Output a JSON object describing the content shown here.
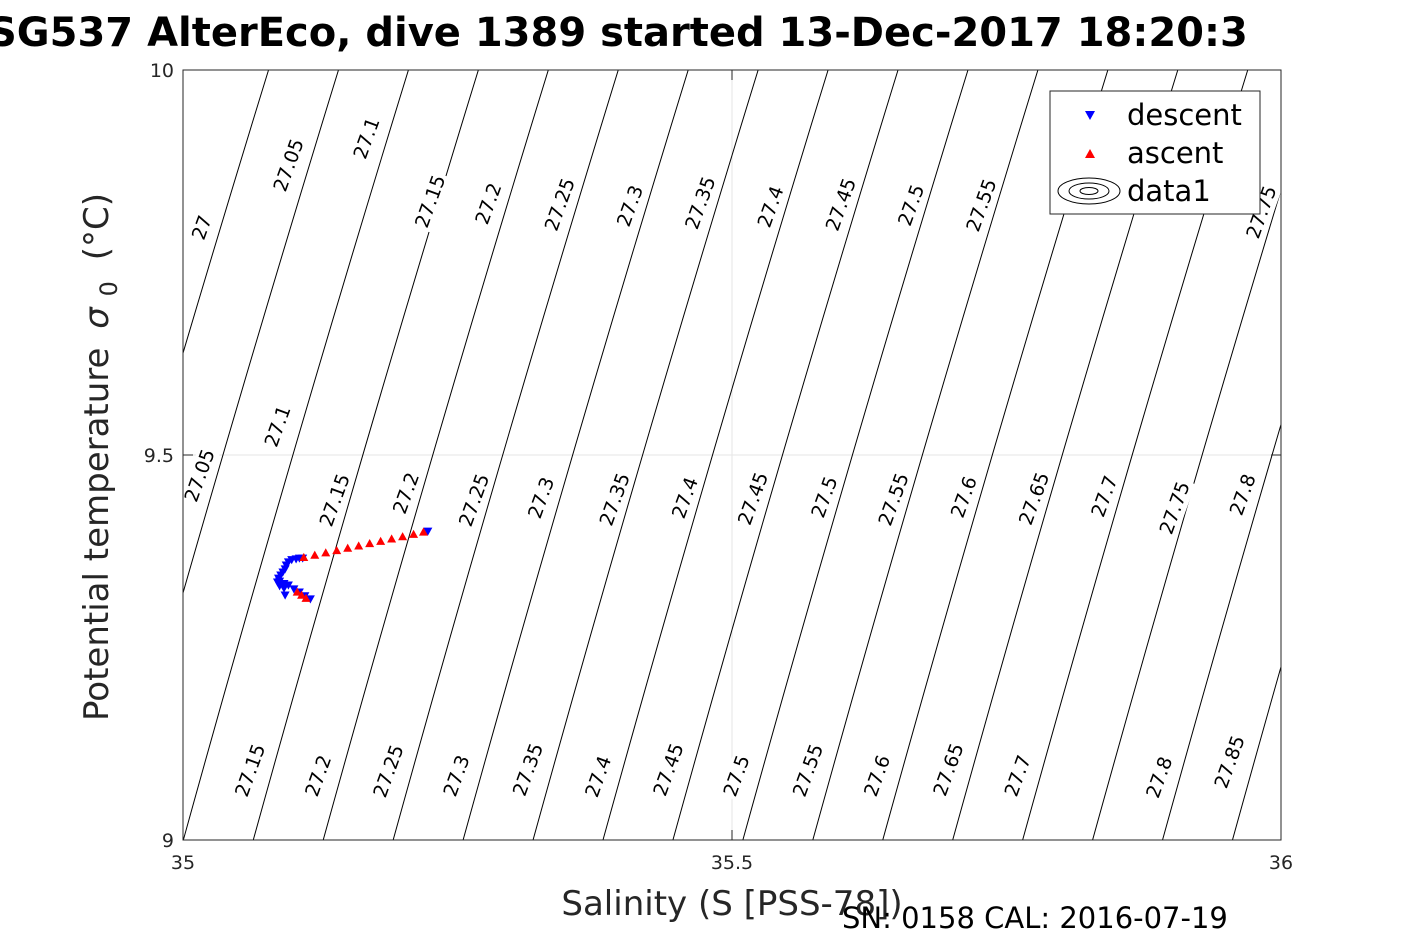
{
  "chart_data": {
    "type": "scatter",
    "title": "SG537 AlterEco, dive 1389 started 13-Dec-2017 18:20:3",
    "xlabel": "Salinity (S [PSS-78])",
    "ylabel": "Potential temperature",
    "ylabel_symbol": "σ",
    "ylabel_subscript": "0",
    "ylabel_unit": "(°C)",
    "xlim": [
      35,
      36
    ],
    "ylim": [
      9,
      10
    ],
    "x_ticks": [
      35,
      35.5,
      36
    ],
    "y_ticks": [
      9,
      9.5,
      10
    ],
    "x_tick_labels": [
      "35",
      "35.5",
      "36"
    ],
    "y_tick_labels": [
      "9",
      "9.5",
      "10"
    ],
    "grid": true,
    "legend_position": "top-right",
    "legend": [
      {
        "name": "descent",
        "marker": "triangle-down",
        "color": "#0000ff"
      },
      {
        "name": "ascent",
        "marker": "triangle-up",
        "color": "#ff0000"
      },
      {
        "name": "data1",
        "marker": "contour",
        "color": "#000000"
      }
    ],
    "series": [
      {
        "name": "descent",
        "color": "#0000ff",
        "marker": "triangle-down",
        "points": [
          [
            35.116,
            9.313
          ],
          [
            35.111,
            9.317
          ],
          [
            35.106,
            9.322
          ],
          [
            35.101,
            9.326
          ],
          [
            35.096,
            9.331
          ],
          [
            35.092,
            9.333
          ],
          [
            35.088,
            9.336
          ],
          [
            35.093,
            9.318
          ],
          [
            35.092,
            9.327
          ],
          [
            35.088,
            9.33
          ],
          [
            35.086,
            9.335
          ],
          [
            35.087,
            9.34
          ],
          [
            35.089,
            9.344
          ],
          [
            35.091,
            9.348
          ],
          [
            35.093,
            9.352
          ],
          [
            35.094,
            9.357
          ],
          [
            35.096,
            9.361
          ],
          [
            35.099,
            9.364
          ],
          [
            35.103,
            9.365
          ],
          [
            35.106,
            9.366
          ],
          [
            35.109,
            9.366
          ],
          [
            35.223,
            9.401
          ]
        ]
      },
      {
        "name": "ascent",
        "color": "#ff0000",
        "marker": "triangle-up",
        "points": [
          [
            35.112,
            9.314
          ],
          [
            35.108,
            9.318
          ],
          [
            35.104,
            9.322
          ],
          [
            35.11,
            9.367
          ],
          [
            35.12,
            9.37
          ],
          [
            35.13,
            9.373
          ],
          [
            35.14,
            9.376
          ],
          [
            35.15,
            9.379
          ],
          [
            35.16,
            9.382
          ],
          [
            35.17,
            9.385
          ],
          [
            35.18,
            9.388
          ],
          [
            35.19,
            9.391
          ],
          [
            35.2,
            9.394
          ],
          [
            35.21,
            9.397
          ],
          [
            35.219,
            9.4
          ]
        ]
      }
    ],
    "contours": {
      "levels": [
        27,
        27.05,
        27.1,
        27.15,
        27.2,
        27.25,
        27.3,
        27.35,
        27.4,
        27.45,
        27.5,
        27.55,
        27.6,
        27.65,
        27.7,
        27.75,
        27.8,
        27.85
      ],
      "color": "#000000",
      "labels": [
        {
          "text": "27",
          "x": 35.018,
          "y": 9.795
        },
        {
          "text": "27.05",
          "x": 35.097,
          "y": 9.876
        },
        {
          "text": "27.1",
          "x": 35.168,
          "y": 9.911
        },
        {
          "text": "27.15",
          "x": 35.226,
          "y": 9.829
        },
        {
          "text": "27.2",
          "x": 35.279,
          "y": 9.826
        },
        {
          "text": "27.25",
          "x": 35.344,
          "y": 9.825
        },
        {
          "text": "27.3",
          "x": 35.408,
          "y": 9.823
        },
        {
          "text": "27.35",
          "x": 35.472,
          "y": 9.827
        },
        {
          "text": "27.4",
          "x": 35.536,
          "y": 9.822
        },
        {
          "text": "27.45",
          "x": 35.6,
          "y": 9.825
        },
        {
          "text": "27.5",
          "x": 35.664,
          "y": 9.824
        },
        {
          "text": "27.55",
          "x": 35.728,
          "y": 9.824
        },
        {
          "text": "27.75",
          "x": 35.983,
          "y": 9.815
        },
        {
          "text": "27.05",
          "x": 35.016,
          "y": 9.473
        },
        {
          "text": "27.1",
          "x": 35.087,
          "y": 9.537
        },
        {
          "text": "27.15",
          "x": 35.139,
          "y": 9.441
        },
        {
          "text": "27.2",
          "x": 35.204,
          "y": 9.45
        },
        {
          "text": "27.25",
          "x": 35.266,
          "y": 9.441
        },
        {
          "text": "27.3",
          "x": 35.327,
          "y": 9.444
        },
        {
          "text": "27.35",
          "x": 35.394,
          "y": 9.442
        },
        {
          "text": "27.4",
          "x": 35.458,
          "y": 9.444
        },
        {
          "text": "27.45",
          "x": 35.52,
          "y": 9.443
        },
        {
          "text": "27.5",
          "x": 35.585,
          "y": 9.445
        },
        {
          "text": "27.55",
          "x": 35.648,
          "y": 9.442
        },
        {
          "text": "27.6",
          "x": 35.712,
          "y": 9.445
        },
        {
          "text": "27.65",
          "x": 35.776,
          "y": 9.443
        },
        {
          "text": "27.7",
          "x": 35.84,
          "y": 9.446
        },
        {
          "text": "27.75",
          "x": 35.904,
          "y": 9.431
        },
        {
          "text": "27.8",
          "x": 35.966,
          "y": 9.448
        },
        {
          "text": "27.15",
          "x": 35.062,
          "y": 9.09
        },
        {
          "text": "27.2",
          "x": 35.124,
          "y": 9.083
        },
        {
          "text": "27.25",
          "x": 35.188,
          "y": 9.089
        },
        {
          "text": "27.3",
          "x": 35.25,
          "y": 9.083
        },
        {
          "text": "27.35",
          "x": 35.315,
          "y": 9.091
        },
        {
          "text": "27.4",
          "x": 35.379,
          "y": 9.082
        },
        {
          "text": "27.45",
          "x": 35.443,
          "y": 9.091
        },
        {
          "text": "27.5",
          "x": 35.505,
          "y": 9.083
        },
        {
          "text": "27.55",
          "x": 35.57,
          "y": 9.09
        },
        {
          "text": "27.6",
          "x": 35.633,
          "y": 9.083
        },
        {
          "text": "27.65",
          "x": 35.698,
          "y": 9.091
        },
        {
          "text": "27.7",
          "x": 35.761,
          "y": 9.083
        },
        {
          "text": "27.8",
          "x": 35.89,
          "y": 9.081
        },
        {
          "text": "27.85",
          "x": 35.954,
          "y": 9.101
        }
      ]
    }
  },
  "footer": {
    "note": "SN: 0158  CAL: 2016-07-19"
  }
}
